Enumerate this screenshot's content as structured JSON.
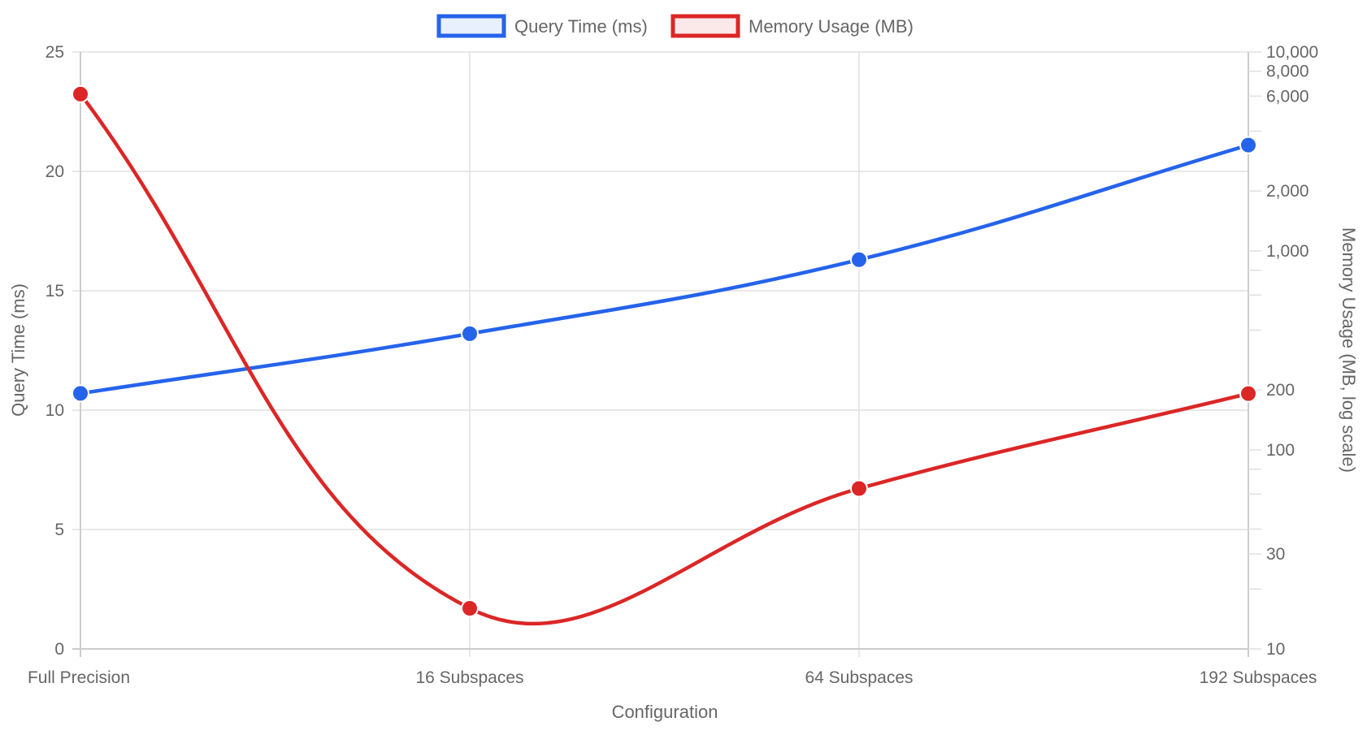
{
  "chart_data": {
    "type": "line",
    "categories": [
      "Full Precision",
      "16 Subspaces",
      "64 Subspaces",
      "192 Subspaces"
    ],
    "xlabel": "Configuration",
    "series": [
      {
        "name": "Query Time (ms)",
        "axis": "left",
        "color": "#2563eb",
        "fill": "#e8effd",
        "values": [
          10.7,
          13.2,
          16.3,
          21.1
        ]
      },
      {
        "name": "Memory Usage (MB)",
        "axis": "right",
        "color": "#dc2626",
        "fill": "#fbe9e9",
        "values": [
          6144,
          16,
          64,
          192
        ]
      }
    ],
    "left_axis": {
      "label": "Query Time (ms)",
      "range": [
        0,
        25
      ],
      "ticks": [
        0,
        5,
        10,
        15,
        20,
        25
      ]
    },
    "right_axis": {
      "label": "Memory Usage (MB, log scale)",
      "scale": "log",
      "range": [
        10,
        10000
      ],
      "tick_labels": [
        "10",
        "30",
        "100",
        "200",
        "1,000",
        "2,000",
        "6,000",
        "8,000",
        "10,000"
      ],
      "ticks": [
        10,
        30,
        100,
        200,
        1000,
        2000,
        6000,
        8000,
        10000
      ]
    },
    "grid": true,
    "legend": "top"
  }
}
